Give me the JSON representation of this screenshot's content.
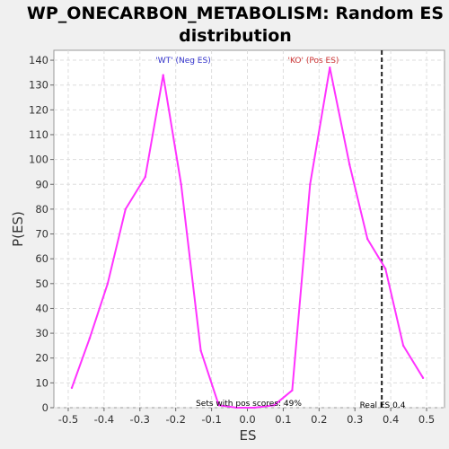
{
  "chart_data": {
    "type": "line",
    "title_lines": [
      "WP_ONECARBON_METABOLISM: Random ES",
      "distribution"
    ],
    "xlabel": "ES",
    "ylabel": "P(ES)",
    "xlim": [
      -0.54,
      0.55
    ],
    "ylim": [
      0,
      144
    ],
    "x_ticks": [
      -0.5,
      -0.4,
      -0.3,
      -0.2,
      -0.1,
      0.0,
      0.1,
      0.2,
      0.3,
      0.4,
      0.5
    ],
    "x_tick_labels": [
      "-0.5",
      "-0.4",
      "-0.3",
      "-0.2",
      "-0.1",
      "0.0",
      "0.1",
      "0.2",
      "0.3",
      "0.4",
      "0.5"
    ],
    "y_ticks": [
      0,
      10,
      20,
      30,
      40,
      50,
      60,
      70,
      80,
      90,
      100,
      110,
      120,
      130,
      140
    ],
    "y_tick_labels": [
      "0",
      "10",
      "20",
      "30",
      "40",
      "50",
      "60",
      "70",
      "80",
      "90",
      "100",
      "110",
      "120",
      "130",
      "140"
    ],
    "grid": true,
    "series": [
      {
        "color": "#ff33ff",
        "x": [
          -0.49,
          -0.44,
          -0.39,
          -0.34,
          -0.285,
          -0.235,
          -0.185,
          -0.13,
          -0.08,
          -0.03,
          0.02,
          0.075,
          0.125,
          0.175,
          0.23,
          0.285,
          0.335,
          0.385,
          0.435,
          0.49
        ],
        "y": [
          8,
          28,
          50,
          80,
          93,
          134,
          90,
          23,
          1,
          0,
          0,
          1,
          7,
          90,
          137,
          98,
          68,
          56,
          25,
          12
        ]
      }
    ],
    "annotations": {
      "neg_label": "'WT' (Neg ES)",
      "neg_color": "#3333cc",
      "pos_label": "'KO' (Pos ES)",
      "pos_color": "#cc3333",
      "pos_scores_text": "Sets with pos scores: 49%",
      "real_es_text": "Real ES 0.4",
      "real_es_x": 0.375
    }
  }
}
